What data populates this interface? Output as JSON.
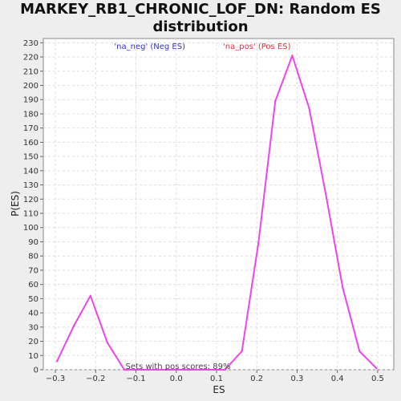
{
  "chart_data": {
    "type": "line",
    "title_line1": "MARKEY_RB1_CHRONIC_LOF_DN: Random ES",
    "title_line2": "distribution",
    "xlabel": "ES",
    "ylabel": "P(ES)",
    "xlim": [
      -0.33,
      0.54
    ],
    "ylim": [
      0,
      233
    ],
    "xticks": [
      -0.3,
      -0.2,
      -0.1,
      0.0,
      0.1,
      0.2,
      0.3,
      0.4,
      0.5
    ],
    "xtick_labels": [
      "−0.3",
      "−0.2",
      "−0.1",
      "0.0",
      "0.1",
      "0.2",
      "0.3",
      "0.4",
      "0.5"
    ],
    "yticks": [
      0,
      10,
      20,
      30,
      40,
      50,
      60,
      70,
      80,
      90,
      100,
      110,
      120,
      130,
      140,
      150,
      160,
      170,
      180,
      190,
      200,
      210,
      220,
      230
    ],
    "grid": true,
    "legend": [
      {
        "label": "'na_neg' (Neg ES)",
        "color": "#3333cc"
      },
      {
        "label": "'na_pos' (Pos ES)",
        "color": "#dd3333"
      }
    ],
    "annotation": "Sets with pos scores: 89%",
    "series": [
      {
        "color": "#ee44ee",
        "x": [
          -0.296,
          -0.254,
          -0.213,
          -0.171,
          -0.129,
          -0.087,
          -0.046,
          -0.004,
          0.038,
          0.079,
          0.121,
          0.163,
          0.204,
          0.246,
          0.288,
          0.33,
          0.371,
          0.413,
          0.455,
          0.497
        ],
        "y": [
          6,
          31,
          52,
          19,
          0,
          0,
          0,
          0,
          0,
          0,
          0,
          13,
          89,
          189,
          221,
          184,
          124,
          58,
          13,
          1
        ]
      }
    ]
  }
}
